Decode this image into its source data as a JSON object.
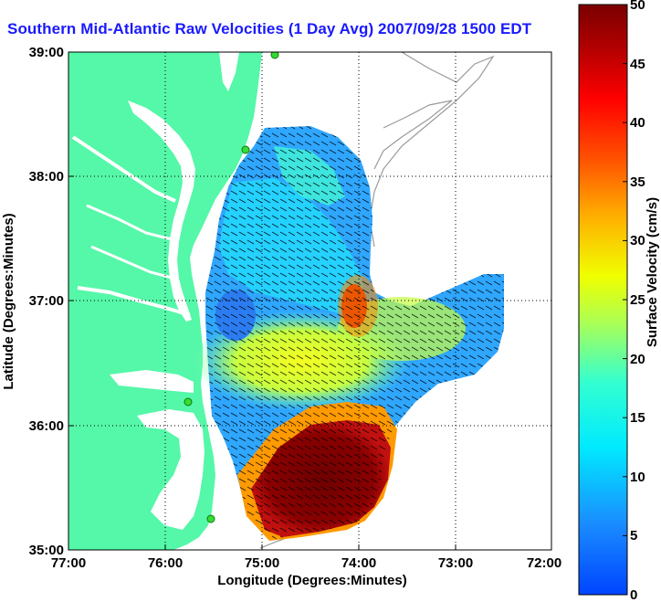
{
  "title": "Southern Mid-Atlantic Raw Velocities (1 Day Avg) 2007/09/28 1500 EDT",
  "map": {
    "xlabel": "Longitude (Degrees:Minutes)",
    "ylabel": "Latitude (Degrees:Minutes)",
    "x_ticks": [
      "77:00",
      "76:00",
      "75:00",
      "74:00",
      "73:00",
      "72:00"
    ],
    "y_ticks": [
      "39:00",
      "38:00",
      "37:00",
      "36:00",
      "35:00"
    ],
    "lon_range_west": [
      77,
      72
    ],
    "lat_range": [
      35,
      39
    ],
    "land_color": "#55f7a8",
    "water_color": "#ffffff"
  },
  "colorbar": {
    "label": "Surface Velocity (cm/s)",
    "ticks": [
      "50",
      "45",
      "40",
      "35",
      "30",
      "25",
      "20",
      "15",
      "10",
      "5",
      "0"
    ],
    "range": [
      0,
      50
    ]
  },
  "stations": [
    "station-1",
    "station-2",
    "station-3",
    "station-4"
  ]
}
